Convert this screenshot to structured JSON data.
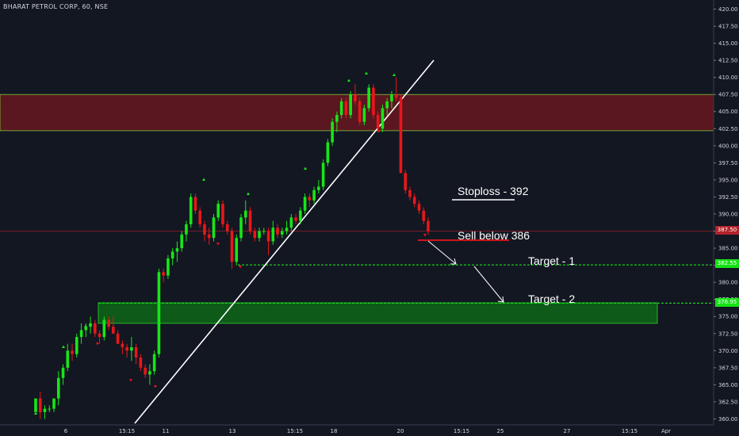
{
  "chart_data": {
    "type": "candlestick",
    "title": "BHARAT PETROL CORP, 60, NSE",
    "ylim": [
      359.5,
      421
    ],
    "y_ticks": [
      "420.00",
      "417.50",
      "415.00",
      "412.50",
      "410.00",
      "407.50",
      "405.00",
      "402.50",
      "400.00",
      "397.50",
      "395.00",
      "392.50",
      "390.00",
      "387.50",
      "385.00",
      "382.50",
      "380.00",
      "377.50",
      "375.00",
      "372.50",
      "370.00",
      "367.50",
      "365.00",
      "362.50",
      "360.00"
    ],
    "x_ticks": [
      "6",
      "15:15",
      "11",
      "13",
      "15:15",
      "18",
      "20",
      "15:15",
      "25",
      "27",
      "15:15",
      "Apr"
    ],
    "candles": [
      [
        361,
        363,
        361,
        363
      ],
      [
        363,
        364,
        360,
        361
      ],
      [
        361,
        362,
        360,
        361.5
      ],
      [
        361.5,
        362,
        361,
        361.5
      ],
      [
        361.5,
        363,
        361,
        363
      ],
      [
        363,
        367,
        362,
        366
      ],
      [
        366,
        368,
        365,
        367.5
      ],
      [
        367.5,
        371,
        367,
        370
      ],
      [
        370,
        371,
        368.5,
        369.5
      ],
      [
        369.5,
        372.5,
        369,
        372
      ],
      [
        372,
        374,
        371,
        373
      ],
      [
        373,
        374,
        372,
        373.5
      ],
      [
        373.5,
        375,
        372.5,
        374
      ],
      [
        374,
        374.5,
        372,
        372.5
      ],
      [
        372.5,
        373,
        371,
        372
      ],
      [
        372,
        375,
        371.5,
        374.5
      ],
      [
        374.5,
        375,
        373,
        373.5
      ],
      [
        373.5,
        375,
        372.5,
        372.5
      ],
      [
        372.5,
        373,
        371,
        371
      ],
      [
        371,
        371.5,
        369.5,
        370.5
      ],
      [
        370.5,
        371,
        369,
        370
      ],
      [
        370,
        372,
        368.5,
        370.5
      ],
      [
        370.5,
        371,
        368,
        369
      ],
      [
        369,
        369.5,
        367,
        367.5
      ],
      [
        367.5,
        368,
        366,
        366.5
      ],
      [
        366.5,
        368,
        365,
        367
      ],
      [
        367,
        370,
        366.5,
        369.5
      ],
      [
        369.5,
        382,
        369,
        381.5
      ],
      [
        381.5,
        382,
        380,
        381
      ],
      [
        381,
        384,
        380.5,
        383.5
      ],
      [
        383.5,
        385,
        382.5,
        384.5
      ],
      [
        384.5,
        386,
        383,
        385
      ],
      [
        385,
        387.5,
        384.5,
        387
      ],
      [
        387,
        389,
        386,
        388.5
      ],
      [
        388.5,
        393,
        388,
        392.5
      ],
      [
        392.5,
        393,
        390,
        390.5
      ],
      [
        390.5,
        391,
        388,
        388.5
      ],
      [
        388.5,
        389,
        386,
        387
      ],
      [
        387,
        388,
        385.5,
        386.5
      ],
      [
        386.5,
        390,
        386,
        389.5
      ],
      [
        389.5,
        392,
        389,
        391.5
      ],
      [
        391.5,
        392,
        388,
        388.5
      ],
      [
        388.5,
        389,
        387,
        387.5
      ],
      [
        387.5,
        388,
        382,
        383
      ],
      [
        383,
        387,
        382.5,
        386.5
      ],
      [
        386.5,
        390,
        386,
        389.5
      ],
      [
        389.5,
        392,
        388.5,
        390.5
      ],
      [
        390.5,
        391,
        387,
        387.5
      ],
      [
        387.5,
        388,
        386,
        386.5
      ],
      [
        386.5,
        388,
        386,
        387.5
      ],
      [
        387.5,
        388,
        387,
        387.5
      ],
      [
        387.5,
        388,
        384,
        386
      ],
      [
        386,
        389,
        385.5,
        388
      ],
      [
        388,
        388.5,
        386.5,
        387
      ],
      [
        387,
        388,
        386.5,
        387.5
      ],
      [
        387.5,
        389,
        387,
        388
      ],
      [
        388,
        390,
        387.5,
        389.5
      ],
      [
        389.5,
        390,
        388.5,
        389
      ],
      [
        389,
        391,
        388.5,
        390.5
      ],
      [
        390.5,
        393,
        390,
        392.5
      ],
      [
        392.5,
        393,
        391,
        392
      ],
      [
        392,
        394,
        391.5,
        393.5
      ],
      [
        393.5,
        395,
        393,
        394
      ],
      [
        394,
        398,
        393.5,
        397.5
      ],
      [
        397.5,
        401,
        397,
        400.5
      ],
      [
        400.5,
        404,
        400,
        403.5
      ],
      [
        403.5,
        405,
        402,
        404.5
      ],
      [
        404.5,
        407,
        404,
        406.5
      ],
      [
        406.5,
        407,
        404,
        404.5
      ],
      [
        404.5,
        408,
        404,
        407.5
      ],
      [
        407.5,
        409,
        406,
        406.5
      ],
      [
        406.5,
        407,
        403,
        403.5
      ],
      [
        403.5,
        406,
        403,
        405.5
      ],
      [
        405.5,
        409,
        405,
        408.5
      ],
      [
        408.5,
        409,
        404,
        404.5
      ],
      [
        404.5,
        405,
        402,
        402.5
      ],
      [
        402.5,
        406,
        402,
        405.5
      ],
      [
        405.5,
        407,
        404.5,
        406.5
      ],
      [
        406.5,
        408,
        405.5,
        407.5
      ],
      [
        407.5,
        410,
        406.5,
        407
      ],
      [
        407,
        407.5,
        396,
        396
      ],
      [
        396,
        396.5,
        393,
        393.5
      ],
      [
        393.5,
        394,
        392,
        392.5
      ],
      [
        392.5,
        393,
        391,
        391.5
      ],
      [
        391.5,
        392,
        390,
        390.5
      ],
      [
        390.5,
        391,
        388.5,
        389
      ],
      [
        389,
        389.5,
        387,
        387.5
      ]
    ],
    "horizontal_lines": [
      {
        "price": 387.5,
        "label": "387.50",
        "style": "solid",
        "color": "#b2222a"
      },
      {
        "price": 382.55,
        "label": "382.55",
        "style": "dashed",
        "color": "#16e216"
      },
      {
        "price": 376.95,
        "label": "376.95",
        "style": "dashed",
        "color": "#16e216"
      }
    ],
    "zones": [
      {
        "top": 407.5,
        "bottom": 402.2,
        "color": "#5a1720",
        "border": "#7fc93a"
      },
      {
        "top": 377,
        "bottom": 374,
        "color": "#0e5a18",
        "border": "#2bd42b"
      }
    ],
    "annotations": {
      "stoploss": "Stoploss  - 392",
      "sell": "Sell below 386",
      "target1": "Target - 1",
      "target2": "Target - 2"
    },
    "colors": {
      "up": "#17e617",
      "down": "#e8171a",
      "background": "#131722",
      "text": "#d1d4dc"
    }
  }
}
